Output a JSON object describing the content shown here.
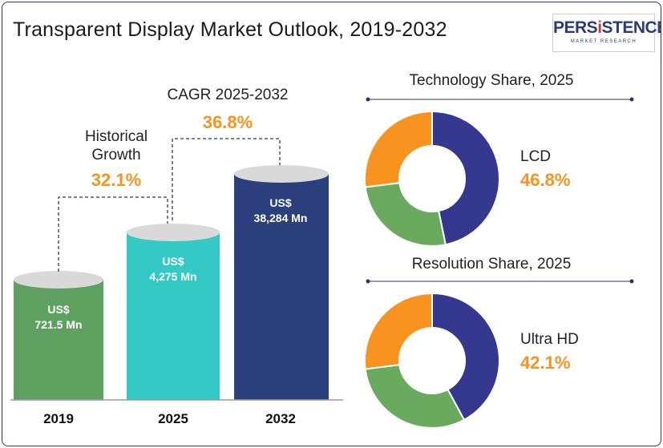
{
  "header": {
    "title": "Transparent Display Market Outlook, 2019-2032"
  },
  "logo": {
    "brand_pre": "PERS",
    "brand_i": "i",
    "brand_post": "STENCE",
    "tagline": "MARKET RESEARCH"
  },
  "annotations": {
    "historical_label": "Historical Growth",
    "historical_value": "32.1%",
    "cagr_label": "CAGR 2025-2032",
    "cagr_value": "36.8%"
  },
  "colors": {
    "bar_2019": "#5da05f",
    "bar_2025": "#35c9c6",
    "bar_2032": "#2b3f7c",
    "cap": "#d9d9d9",
    "navy": "#34388f",
    "green": "#6aaa5f",
    "orange": "#f7931e"
  },
  "chart_data": [
    {
      "type": "bar",
      "categories": [
        "2019",
        "2025",
        "2032"
      ],
      "values": [
        721.5,
        4275,
        38284
      ],
      "unit": "US$ Mn",
      "value_labels": [
        [
          "US$",
          "721.5 Mn"
        ],
        [
          "US$",
          "4,275 Mn"
        ],
        [
          "US$",
          "38,284 Mn"
        ]
      ]
    },
    {
      "type": "pie",
      "title": "Technology Share, 2025",
      "highlight_label": "LCD",
      "highlight_value": "46.8%",
      "slices": [
        {
          "value": 46.8,
          "color": "#34388f"
        },
        {
          "value": 26.2,
          "color": "#6aaa5f"
        },
        {
          "value": 27.0,
          "color": "#f7931e"
        }
      ]
    },
    {
      "type": "pie",
      "title": "Resolution Share, 2025",
      "highlight_label": "Ultra HD",
      "highlight_value": "42.1%",
      "slices": [
        {
          "value": 42.1,
          "color": "#34388f"
        },
        {
          "value": 30.9,
          "color": "#6aaa5f"
        },
        {
          "value": 27.0,
          "color": "#f7931e"
        }
      ]
    }
  ]
}
